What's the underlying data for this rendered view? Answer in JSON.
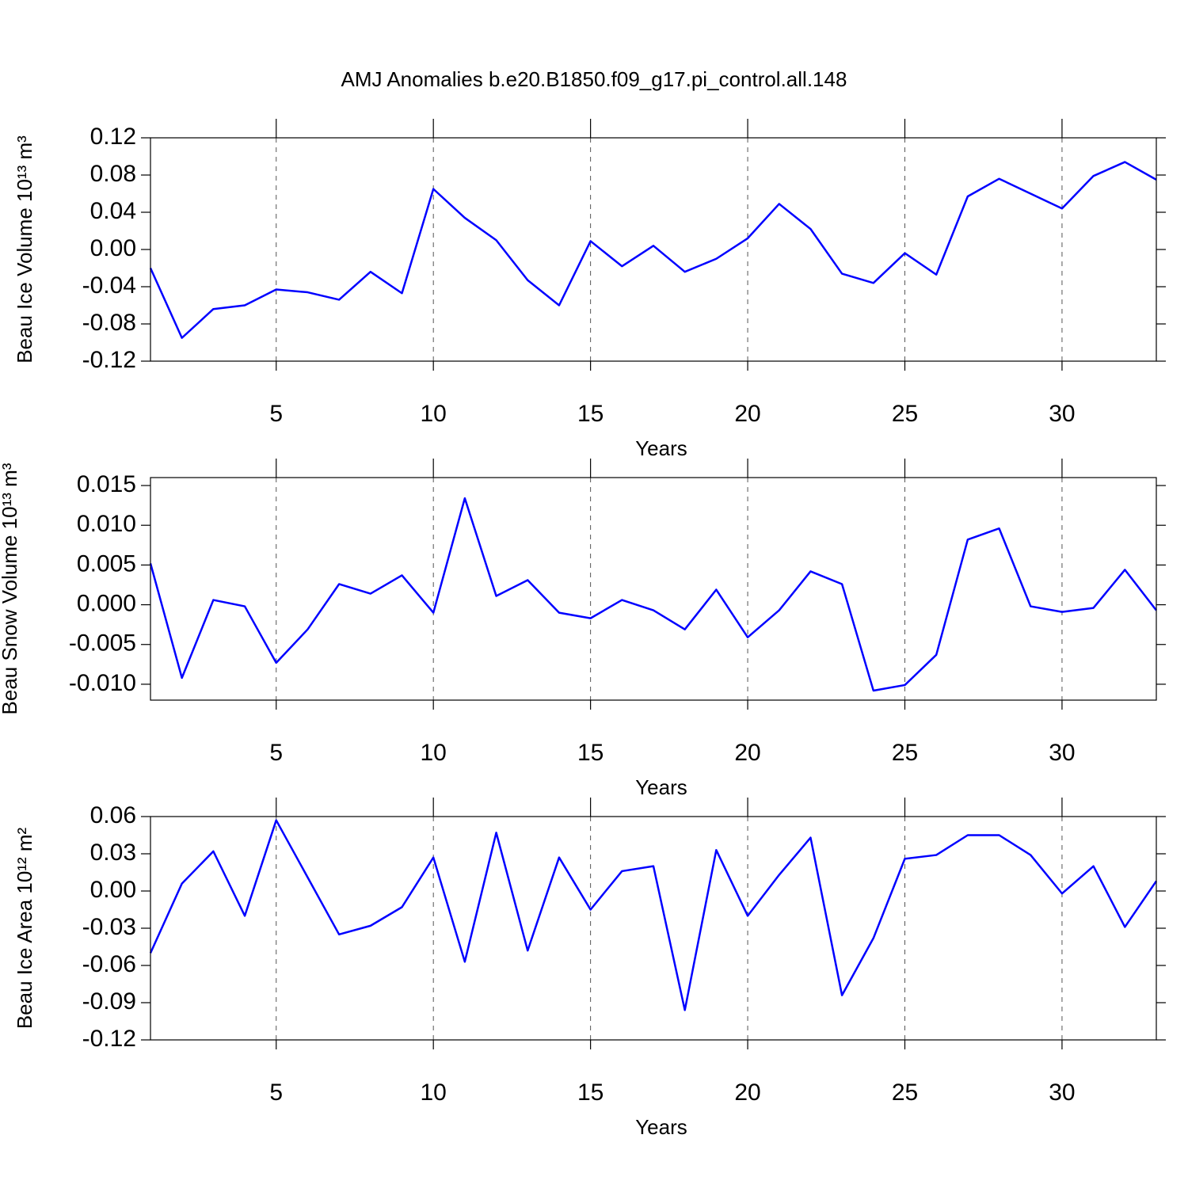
{
  "chart_data": [
    {
      "type": "line",
      "title": "AMJ Anomalies b.e20.B1850.f09_g17.pi_control.all.148",
      "x_label": "Years",
      "y_label": "Beau Ice Volume 10¹³ m³",
      "x": [
        1,
        2,
        3,
        4,
        5,
        6,
        7,
        8,
        9,
        10,
        11,
        12,
        13,
        14,
        15,
        16,
        17,
        18,
        19,
        20,
        21,
        22,
        23,
        24,
        25,
        26,
        27,
        28,
        29,
        30,
        31,
        32,
        33
      ],
      "series": [
        {
          "color": "#0000ff",
          "values": [
            -0.02,
            -0.095,
            -0.064,
            -0.06,
            -0.043,
            -0.046,
            -0.054,
            -0.024,
            -0.047,
            0.065,
            0.034,
            0.01,
            -0.033,
            -0.06,
            0.009,
            -0.018,
            0.004,
            -0.024,
            -0.01,
            0.012,
            0.049,
            0.022,
            -0.026,
            -0.036,
            -0.004,
            -0.027,
            0.057,
            0.076,
            0.06,
            0.044,
            0.079,
            0.094,
            0.075
          ]
        }
      ],
      "xlim": [
        1,
        33
      ],
      "xticks": [
        5,
        10,
        15,
        20,
        25,
        30
      ],
      "ylim": [
        -0.12,
        0.12
      ],
      "yticks": [
        -0.12,
        -0.08,
        -0.04,
        {
          "value": 0,
          "label": "0.00"
        },
        0.04,
        0.08,
        0.12
      ],
      "grid": "x"
    },
    {
      "type": "line",
      "x_label": "Years",
      "y_label": "Beau Snow Volume 10¹³ m³",
      "x": [
        1,
        2,
        3,
        4,
        5,
        6,
        7,
        8,
        9,
        10,
        11,
        12,
        13,
        14,
        15,
        16,
        17,
        18,
        19,
        20,
        21,
        22,
        23,
        24,
        25,
        26,
        27,
        28,
        29,
        30,
        31,
        32,
        33
      ],
      "series": [
        {
          "color": "#0000ff",
          "values": [
            0.0052,
            -0.0092,
            0.0006,
            -0.0002,
            -0.0073,
            -0.0031,
            0.0026,
            0.0014,
            0.0037,
            -0.001,
            0.0134,
            0.0011,
            0.0031,
            -0.001,
            -0.0017,
            0.0006,
            -0.0007,
            -0.0031,
            0.0019,
            -0.0041,
            -0.0007,
            0.0042,
            0.0026,
            -0.0108,
            -0.0101,
            -0.0063,
            0.0082,
            0.0096,
            -0.0002,
            -0.0009,
            -0.0004,
            0.0044,
            -0.0007
          ]
        }
      ],
      "xlim": [
        1,
        33
      ],
      "xticks": [
        5,
        10,
        15,
        20,
        25,
        30
      ],
      "ylim": [
        -0.012,
        0.016
      ],
      "yticks": [
        {
          "value": -0.01,
          "label": "-0.010"
        },
        -0.005,
        {
          "value": 0,
          "label": "0.000"
        },
        0.005,
        {
          "value": 0.01,
          "label": "0.010"
        },
        0.015
      ],
      "grid": "x"
    },
    {
      "type": "line",
      "x_label": "Years",
      "y_label": "Beau Ice Area 10¹² m²",
      "x": [
        1,
        2,
        3,
        4,
        5,
        6,
        7,
        8,
        9,
        10,
        11,
        12,
        13,
        14,
        15,
        16,
        17,
        18,
        19,
        20,
        21,
        22,
        23,
        24,
        25,
        26,
        27,
        28,
        29,
        30,
        31,
        32,
        33
      ],
      "series": [
        {
          "color": "#0000ff",
          "values": [
            -0.05,
            0.006,
            0.032,
            -0.02,
            0.057,
            0.011,
            -0.035,
            -0.028,
            -0.013,
            0.027,
            -0.057,
            0.047,
            -0.048,
            0.027,
            -0.015,
            0.016,
            0.02,
            -0.096,
            0.033,
            -0.02,
            0.013,
            0.043,
            -0.084,
            -0.038,
            0.026,
            0.029,
            0.045,
            0.045,
            0.029,
            -0.002,
            0.02,
            -0.029,
            0.008
          ]
        }
      ],
      "xlim": [
        1,
        33
      ],
      "xticks": [
        5,
        10,
        15,
        20,
        25,
        30
      ],
      "ylim": [
        -0.12,
        0.06
      ],
      "yticks": [
        -0.12,
        -0.09,
        -0.06,
        -0.03,
        {
          "value": 0,
          "label": "0.00"
        },
        0.03,
        0.06
      ],
      "grid": "x"
    }
  ]
}
